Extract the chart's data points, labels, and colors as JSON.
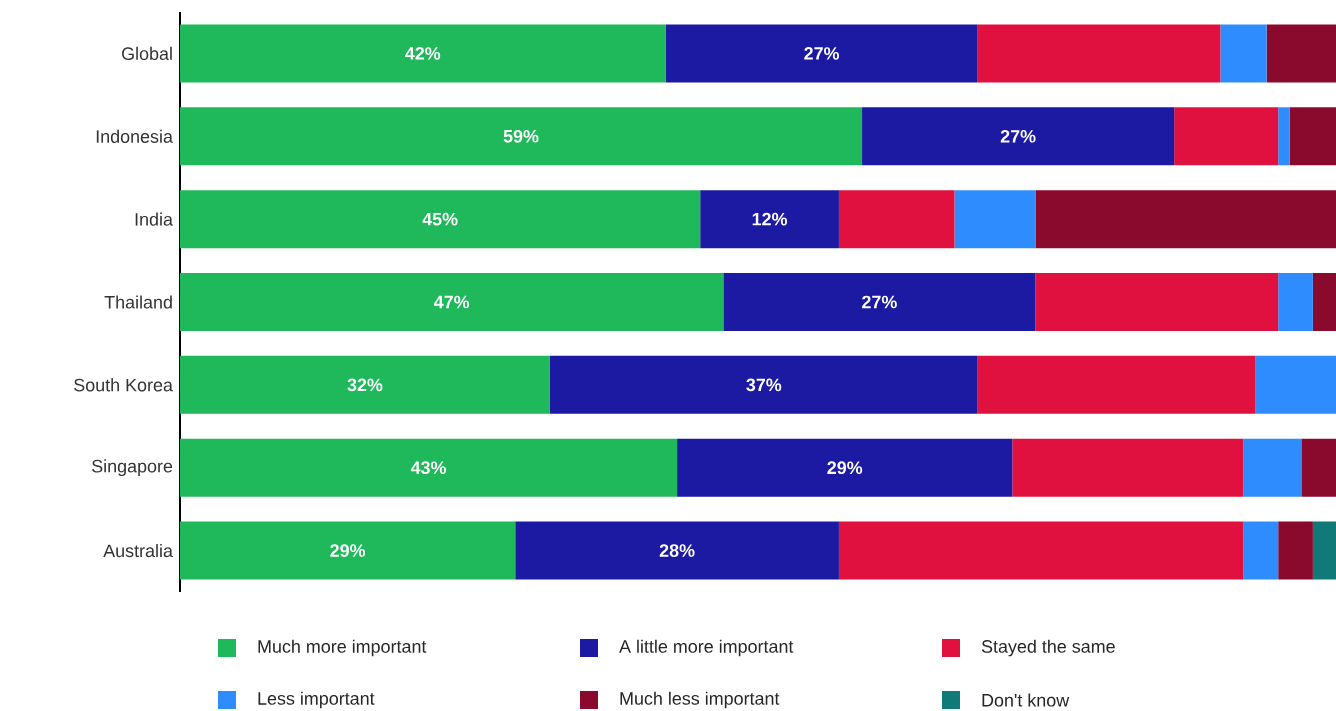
{
  "chart_data": {
    "type": "bar",
    "orientation": "horizontal",
    "stacked": true,
    "legend": "bottom",
    "tick_labels": "y",
    "categories": [
      "Global",
      "Indonesia",
      "India",
      "Thailand",
      "South Korea",
      "Singapore",
      "Australia"
    ],
    "series": [
      {
        "name": "Much more important",
        "color": "#1fb85a",
        "values": [
          42,
          59,
          45,
          47,
          32,
          43,
          29
        ],
        "value_labels": [
          "42%",
          "59%",
          "45%",
          "47%",
          "32%",
          "43%",
          "29%"
        ]
      },
      {
        "name": "A little more important",
        "color": "#1c1aa3",
        "values": [
          27,
          27,
          12,
          27,
          37,
          29,
          28
        ],
        "value_labels": [
          "27%",
          "27%",
          "12%",
          "27%",
          "37%",
          "29%",
          "28%"
        ]
      },
      {
        "name": "Stayed the same",
        "color": "#e0103f",
        "values": [
          21,
          9,
          10,
          21,
          24,
          20,
          35
        ]
      },
      {
        "name": "Less important",
        "color": "#2f8cff",
        "values": [
          4,
          1,
          7,
          3,
          7,
          5,
          3
        ]
      },
      {
        "name": "Much less important",
        "color": "#8a0a2e",
        "values": [
          6,
          4,
          26,
          2,
          0,
          3,
          3
        ]
      },
      {
        "name": "Don't know",
        "color": "#0f7a78",
        "values": [
          0,
          0,
          0,
          0,
          0,
          0,
          2
        ]
      }
    ]
  }
}
